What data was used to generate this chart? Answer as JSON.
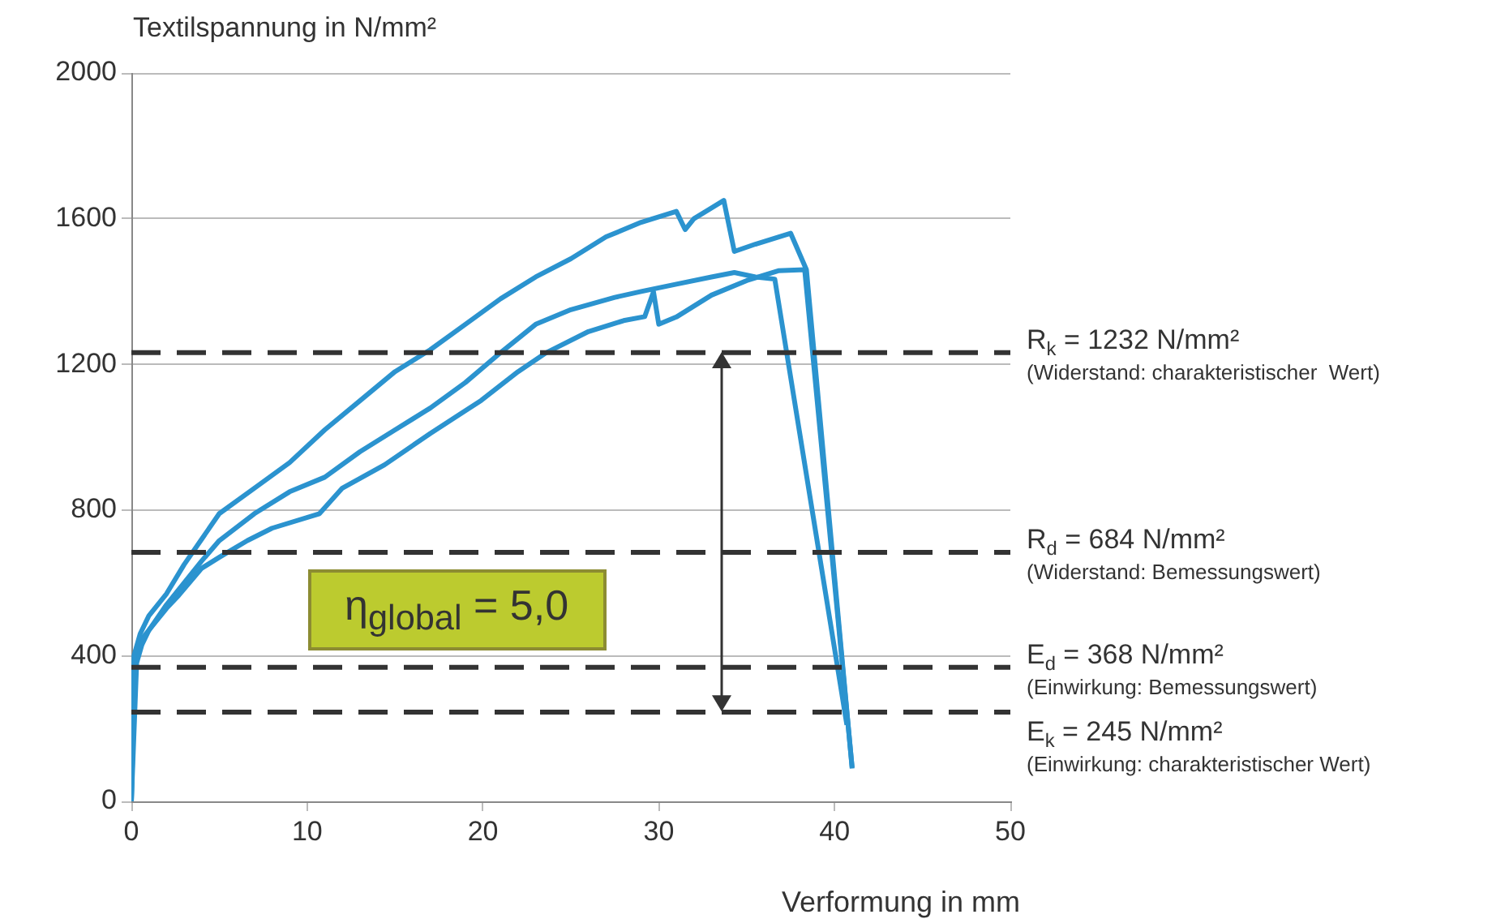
{
  "chart_data": {
    "type": "line",
    "xlabel": "Verformung in mm",
    "ylabel": "Textilspannung in N/mm²",
    "xlim": [
      0,
      50
    ],
    "xticks": [
      0,
      10,
      20,
      30,
      40,
      50
    ],
    "ylim": [
      0,
      2000
    ],
    "yticks": [
      0,
      400,
      800,
      1200,
      1600,
      2000
    ],
    "grid": "y",
    "legend": false,
    "marker": "none",
    "line_style": "solid",
    "series": [
      {
        "color": "#2b93cf",
        "x": [
          0,
          0.15,
          0.5,
          1,
          2,
          3,
          4,
          5,
          7,
          9,
          11,
          13,
          15,
          17,
          19,
          21,
          23,
          25,
          27,
          29,
          31,
          31.5,
          32,
          33.7,
          34.3,
          35.5,
          37.5,
          38.4,
          41
        ],
        "values": [
          0,
          400,
          460,
          510,
          570,
          650,
          720,
          790,
          860,
          930,
          1020,
          1100,
          1180,
          1240,
          1310,
          1380,
          1440,
          1490,
          1550,
          1590,
          1620,
          1570,
          1600,
          1650,
          1510,
          1530,
          1560,
          1460,
          90
        ]
      },
      {
        "color": "#2b93cf",
        "x": [
          0,
          0.2,
          0.5,
          1,
          2,
          3,
          4,
          5,
          7,
          9,
          11,
          13,
          15,
          17,
          19,
          21,
          23,
          25,
          27.5,
          29,
          31,
          33,
          34.3,
          35.5,
          36.6,
          40.7
        ],
        "values": [
          0,
          380,
          440,
          470,
          540,
          600,
          660,
          716,
          790,
          850,
          890,
          960,
          1020,
          1080,
          1150,
          1232,
          1310,
          1350,
          1384,
          1400,
          1420,
          1440,
          1452,
          1440,
          1434,
          210
        ]
      },
      {
        "color": "#2b93cf",
        "x": [
          0,
          0.3,
          0.6,
          1,
          2,
          2.7,
          4,
          5,
          6.6,
          8,
          10.7,
          12,
          14.4,
          17,
          19.9,
          22,
          23.6,
          26,
          28,
          29.2,
          29.7,
          30,
          31,
          33,
          35,
          36.8,
          38.3,
          41
        ],
        "values": [
          0,
          380,
          430,
          470,
          530,
          566,
          640,
          670,
          716,
          750,
          790,
          860,
          924,
          1010,
          1101,
          1180,
          1232,
          1290,
          1320,
          1331,
          1399,
          1310,
          1330,
          1390,
          1430,
          1457,
          1460,
          93
        ]
      }
    ],
    "ref_lines": [
      {
        "axis": "y",
        "value": 1232,
        "label": "R$_{k}$ = 1232 N/mm²\n(Widerstand: charakteristischer  Wert)",
        "color": "#333333",
        "line_style": "dashed"
      },
      {
        "axis": "y",
        "value": 684,
        "label": "R$_{d}$ = 684 N/mm²\n(Widerstand: Bemessungswert)",
        "color": "#333333",
        "line_style": "dashed"
      },
      {
        "axis": "y",
        "value": 368,
        "label": "E$_{d}$ = 368 N/mm²\n(Einwirkung: Bemessungswert)",
        "color": "#333333",
        "line_style": "dashed"
      },
      {
        "axis": "y",
        "value": 245,
        "label": "E$_{k}$ = 245 N/mm²\n(Einwirkung: charakteristischer Wert)",
        "color": "#333333",
        "line_style": "dashed"
      }
    ],
    "annotations": [
      "η$_{global}$ = 5,0"
    ]
  }
}
